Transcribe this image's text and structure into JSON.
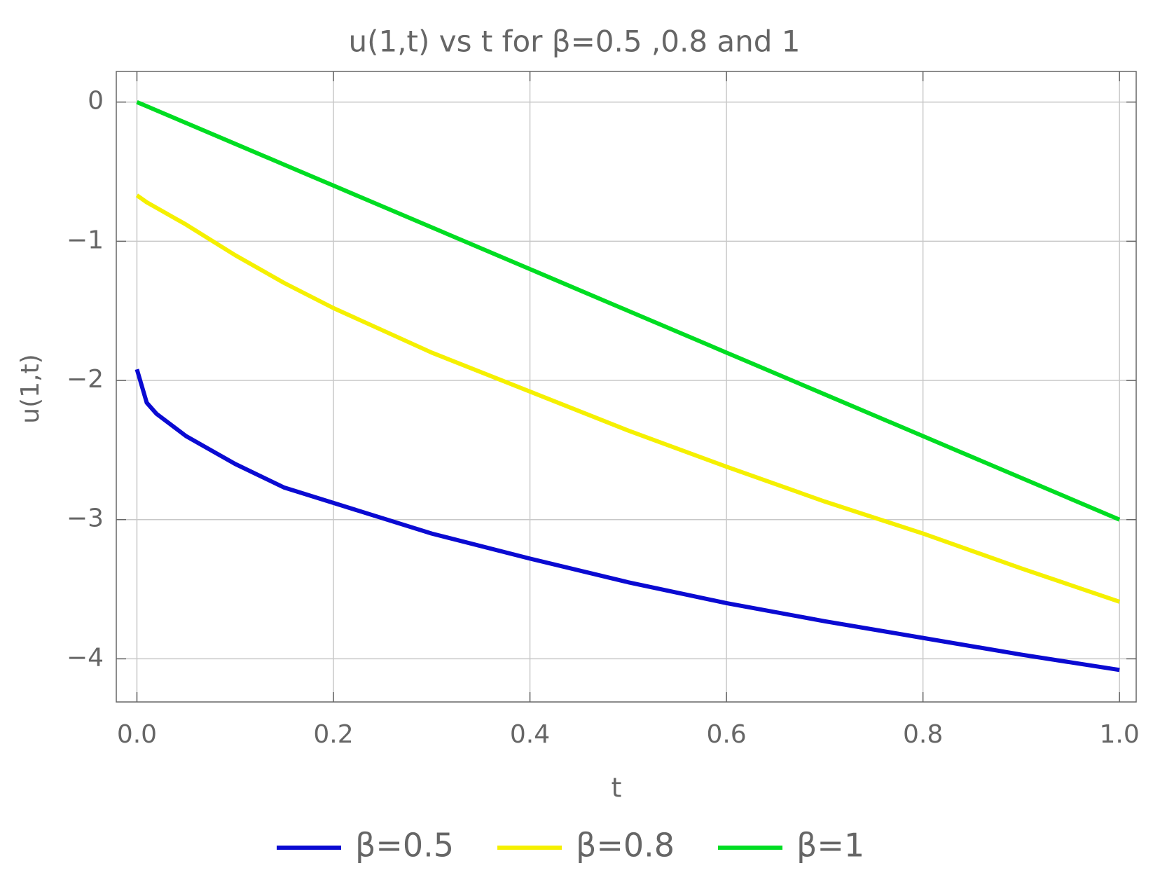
{
  "chart_data": {
    "type": "line",
    "title": "u(1,t) vs t for β=0.5 ,0.8 and 1",
    "x_label": "t",
    "y_label": "u(1,t)",
    "x": [
      0,
      0.01,
      0.02,
      0.05,
      0.1,
      0.15,
      0.2,
      0.3,
      0.4,
      0.5,
      0.6,
      0.7,
      0.8,
      0.9,
      1
    ],
    "series": [
      {
        "name": "β=0.5",
        "color": "#0a0ad2",
        "values": [
          -1.92,
          -2.16,
          -2.24,
          -2.4,
          -2.6,
          -2.77,
          -2.88,
          -3.1,
          -3.28,
          -3.45,
          -3.6,
          -3.73,
          -3.85,
          -3.97,
          -4.08
        ]
      },
      {
        "name": "β=0.8",
        "color": "#f5f000",
        "values": [
          -0.67,
          -0.72,
          -0.76,
          -0.88,
          -1.1,
          -1.3,
          -1.48,
          -1.8,
          -2.08,
          -2.36,
          -2.62,
          -2.87,
          -3.1,
          -3.35,
          -3.59
        ]
      },
      {
        "name": "β=1",
        "color": "#00dd22",
        "values": [
          0,
          -0.03,
          -0.06,
          -0.15,
          -0.3,
          -0.45,
          -0.6,
          -0.9,
          -1.2,
          -1.5,
          -1.8,
          -2.1,
          -2.4,
          -2.7,
          -3
        ]
      }
    ],
    "xlim": [
      -0.021,
      1.017
    ],
    "ylim": [
      -4.31,
      0.22
    ],
    "xticks": [
      {
        "value": 0,
        "label": "0.0"
      },
      0.2,
      0.4,
      0.6,
      0.8,
      {
        "value": 1,
        "label": "1.0"
      }
    ],
    "yticks": [
      {
        "value": -4,
        "label": "−4"
      },
      {
        "value": -3,
        "label": "−3"
      },
      {
        "value": -2,
        "label": "−2"
      },
      {
        "value": -1,
        "label": "−1"
      },
      0
    ],
    "grid": true,
    "legend": "bottom"
  }
}
